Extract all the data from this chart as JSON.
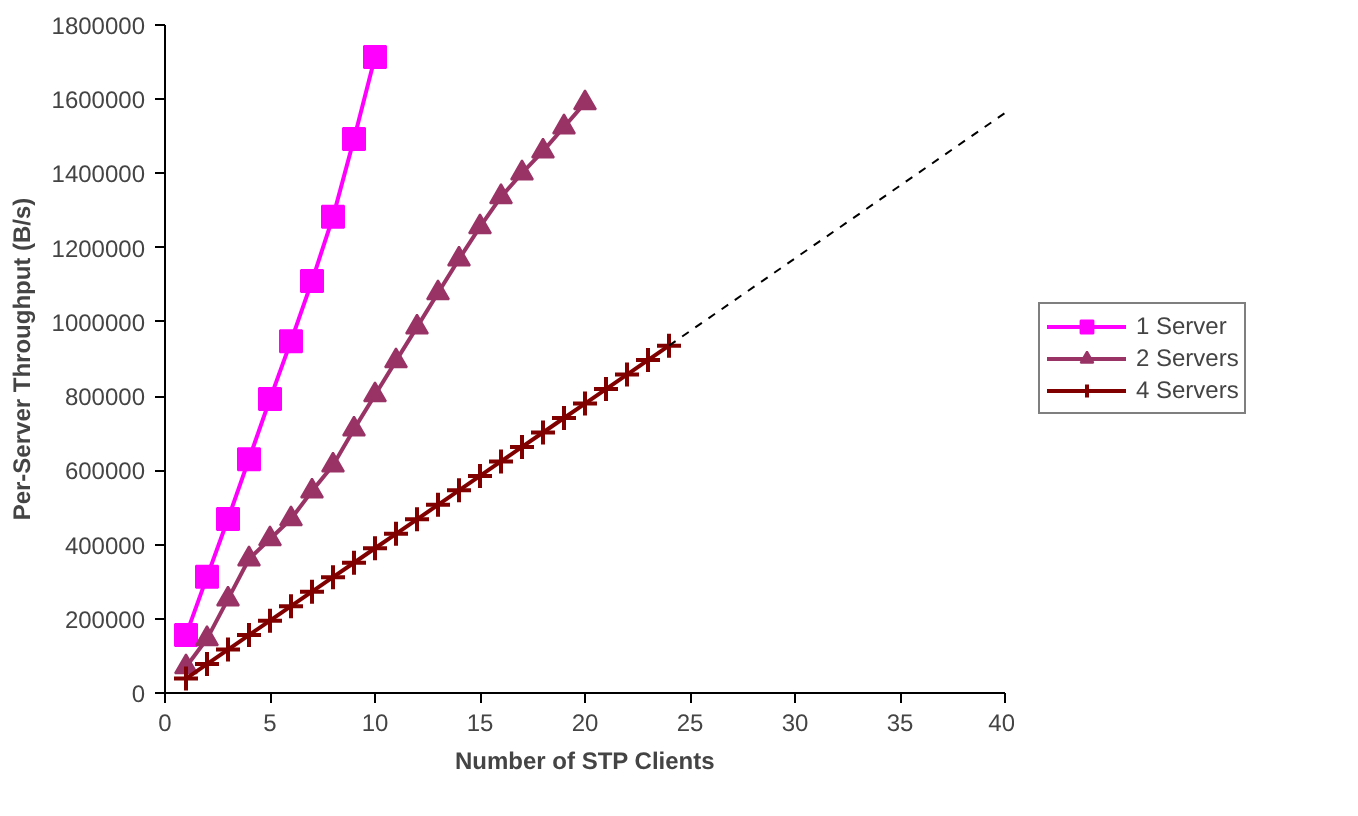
{
  "chart_data": {
    "type": "line",
    "xlabel": "Number of STP Clients",
    "ylabel": "Per-Server Throughput (B/s)",
    "xlim": [
      0,
      40
    ],
    "xticks": [
      0,
      5,
      10,
      15,
      20,
      25,
      30,
      35,
      40
    ],
    "ylim": [
      0,
      1800000
    ],
    "yticks": [
      0,
      200000,
      400000,
      600000,
      800000,
      1000000,
      1200000,
      1400000,
      1600000,
      1800000
    ],
    "grid": false,
    "legend": "right",
    "series": [
      {
        "name": "1 Server",
        "color": "#ff00ff",
        "marker": "square",
        "line_style": "solid",
        "x": [
          1,
          2,
          3,
          4,
          5,
          6,
          7,
          8,
          9,
          10
        ],
        "values": [
          156000,
          313000,
          469000,
          630000,
          792000,
          948000,
          1110000,
          1283000,
          1493000,
          1714000
        ]
      },
      {
        "name": "2 Servers",
        "color": "#993366",
        "marker": "triangle",
        "line_style": "solid",
        "x": [
          1,
          2,
          3,
          4,
          5,
          6,
          7,
          8,
          9,
          10,
          11,
          12,
          13,
          14,
          15,
          16,
          17,
          18,
          19,
          20
        ],
        "values": [
          70000,
          146000,
          253000,
          361000,
          415000,
          469000,
          544000,
          614000,
          711000,
          803000,
          895000,
          986000,
          1078000,
          1169000,
          1256000,
          1337000,
          1401000,
          1460000,
          1525000,
          1590000
        ]
      },
      {
        "name": "4 Servers",
        "color": "#800000",
        "marker": "cross",
        "line_style": "solid",
        "x": [
          1,
          2,
          3,
          4,
          5,
          6,
          7,
          8,
          9,
          10,
          11,
          12,
          13,
          14,
          15,
          16,
          17,
          18,
          19,
          20,
          21,
          22,
          23,
          24
        ],
        "values": [
          39000,
          78000,
          117000,
          156000,
          195000,
          234000,
          273000,
          312000,
          351000,
          390000,
          429000,
          468000,
          507000,
          546000,
          585000,
          624000,
          663000,
          702000,
          741000,
          780000,
          819000,
          858000,
          897000,
          936000
        ]
      },
      {
        "color": "#000000",
        "marker": "none",
        "line_style": "dashed",
        "x": [
          24,
          40
        ],
        "values": [
          936000,
          1563000
        ]
      }
    ]
  }
}
